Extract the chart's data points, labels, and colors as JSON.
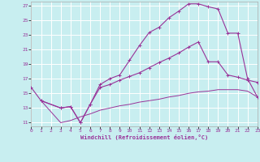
{
  "xlabel": "Windchill (Refroidissement éolien,°C)",
  "bg_color": "#c8eef0",
  "grid_color": "#ffffff",
  "line_color": "#993399",
  "xlim": [
    0,
    23
  ],
  "ylim": [
    10.5,
    27.5
  ],
  "xticks": [
    0,
    1,
    2,
    3,
    4,
    5,
    6,
    7,
    8,
    9,
    10,
    11,
    12,
    13,
    14,
    15,
    16,
    17,
    18,
    19,
    20,
    21,
    22,
    23
  ],
  "yticks": [
    11,
    13,
    15,
    17,
    19,
    21,
    23,
    25,
    27
  ],
  "curve1_x": [
    0,
    1,
    3,
    4,
    5,
    6,
    7,
    8,
    9,
    10,
    11,
    12,
    13,
    14,
    15,
    16,
    17,
    18,
    19,
    20,
    21,
    22,
    23
  ],
  "curve1_y": [
    15.8,
    14.0,
    13.0,
    13.2,
    11.0,
    13.5,
    16.2,
    17.0,
    17.5,
    19.5,
    21.5,
    23.3,
    24.0,
    25.3,
    26.2,
    27.2,
    27.2,
    26.8,
    26.5,
    23.2,
    23.2,
    17.0,
    14.5
  ],
  "curve2_x": [
    1,
    3,
    4,
    5,
    6,
    7,
    8,
    9,
    10,
    11,
    12,
    13,
    14,
    15,
    16,
    17,
    18,
    19,
    20,
    21,
    22,
    23
  ],
  "curve2_y": [
    14.0,
    13.0,
    13.2,
    11.0,
    13.5,
    15.8,
    16.2,
    16.8,
    17.3,
    17.8,
    18.5,
    19.2,
    19.8,
    20.5,
    21.3,
    22.0,
    19.3,
    19.3,
    17.5,
    17.2,
    16.8,
    16.5
  ],
  "curve3_x": [
    1,
    3,
    4,
    5,
    6,
    7,
    8,
    9,
    10,
    11,
    12,
    13,
    14,
    15,
    16,
    17,
    18,
    19,
    20,
    21,
    22,
    23
  ],
  "curve3_y": [
    14.0,
    11.0,
    11.3,
    11.8,
    12.2,
    12.7,
    13.0,
    13.3,
    13.5,
    13.8,
    14.0,
    14.2,
    14.5,
    14.7,
    15.0,
    15.2,
    15.3,
    15.5,
    15.5,
    15.5,
    15.3,
    14.5
  ]
}
